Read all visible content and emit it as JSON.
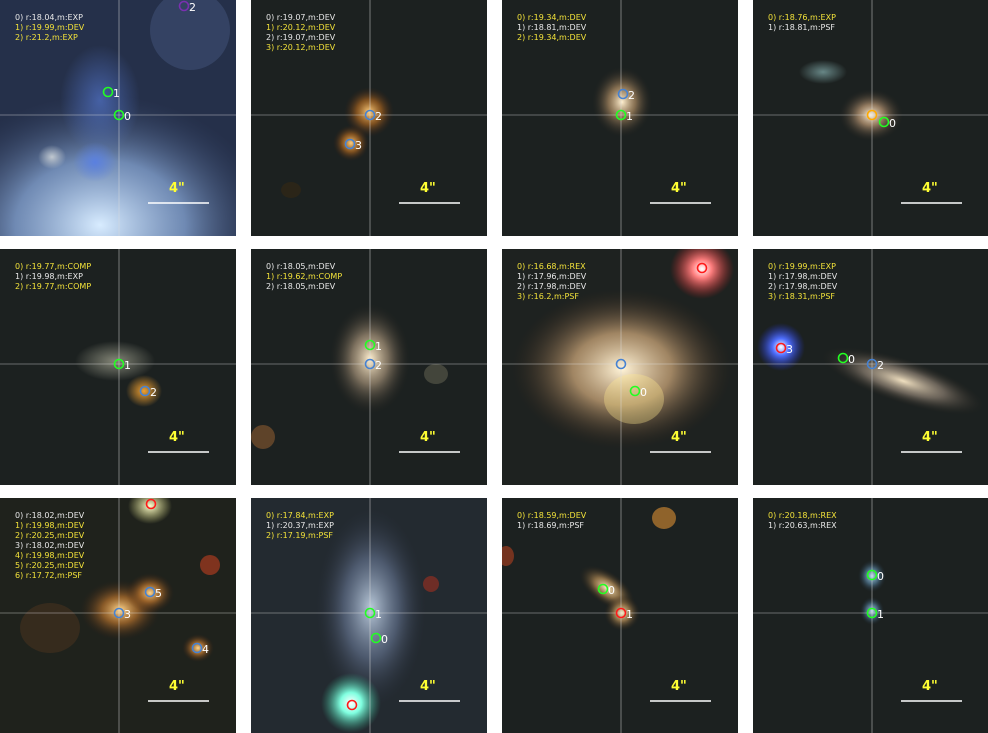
{
  "colors": {
    "green": "#22ff22",
    "blue": "#4682d2",
    "red": "#ff1a1a",
    "orange": "#ffaa00",
    "purple": "#7a30b0",
    "legend_white": "#e8e8e8",
    "legend_yellow": "#f2e23a",
    "scale_yellow": "#ffff33"
  },
  "scale_text": "4\"",
  "panels": [
    {
      "legend": [
        {
          "text": "0) r:18.04,m:EXP",
          "color": "legend_white"
        },
        {
          "text": "1) r:19.99,m:DEV",
          "color": "legend_yellow"
        },
        {
          "text": "2) r:21.2,m:EXP",
          "color": "legend_yellow"
        }
      ],
      "markers": [
        {
          "label": "0",
          "color": "green"
        },
        {
          "label": "1",
          "color": "green"
        },
        {
          "label": "2",
          "color": "purple"
        }
      ]
    },
    {
      "legend": [
        {
          "text": "0) r:19.07,m:DEV",
          "color": "legend_white"
        },
        {
          "text": "1) r:20.12,m:DEV",
          "color": "legend_yellow"
        },
        {
          "text": "2) r:19.07,m:DEV",
          "color": "legend_white"
        },
        {
          "text": "3) r:20.12,m:DEV",
          "color": "legend_yellow"
        }
      ],
      "markers": [
        {
          "label": "2",
          "color": "blue"
        },
        {
          "label": "3",
          "color": "blue"
        }
      ]
    },
    {
      "legend": [
        {
          "text": "0) r:19.34,m:DEV",
          "color": "legend_yellow"
        },
        {
          "text": "1) r:18.81,m:DEV",
          "color": "legend_white"
        },
        {
          "text": "2) r:19.34,m:DEV",
          "color": "legend_yellow"
        }
      ],
      "markers": [
        {
          "label": "2",
          "color": "blue"
        },
        {
          "label": "1",
          "color": "green"
        }
      ]
    },
    {
      "legend": [
        {
          "text": "0) r:18.76,m:EXP",
          "color": "legend_yellow"
        },
        {
          "text": "1) r:18.81,m:PSF",
          "color": "legend_white"
        }
      ],
      "markers": [
        {
          "label": "",
          "color": "orange"
        },
        {
          "label": "0",
          "color": "green"
        }
      ]
    },
    {
      "legend": [
        {
          "text": "0) r:19.77,m:COMP",
          "color": "legend_yellow"
        },
        {
          "text": "1) r:19.98,m:EXP",
          "color": "legend_white"
        },
        {
          "text": "2) r:19.77,m:COMP",
          "color": "legend_yellow"
        }
      ],
      "markers": [
        {
          "label": "1",
          "color": "green"
        },
        {
          "label": "2",
          "color": "blue"
        }
      ]
    },
    {
      "legend": [
        {
          "text": "0) r:18.05,m:DEV",
          "color": "legend_white"
        },
        {
          "text": "1) r:19.62,m:COMP",
          "color": "legend_yellow"
        },
        {
          "text": "2) r:18.05,m:DEV",
          "color": "legend_white"
        }
      ],
      "markers": [
        {
          "label": "1",
          "color": "green"
        },
        {
          "label": "2",
          "color": "blue"
        }
      ]
    },
    {
      "legend": [
        {
          "text": "0) r:16.68,m:REX",
          "color": "legend_yellow"
        },
        {
          "text": "1) r:17.96,m:DEV",
          "color": "legend_white"
        },
        {
          "text": "2) r:17.98,m:DEV",
          "color": "legend_white"
        },
        {
          "text": "3) r:16.2,m:PSF",
          "color": "legend_yellow"
        }
      ],
      "markers": [
        {
          "label": "",
          "color": "red"
        },
        {
          "label": "",
          "color": "blue"
        },
        {
          "label": "0",
          "color": "green"
        }
      ]
    },
    {
      "legend": [
        {
          "text": "0) r:19.99,m:EXP",
          "color": "legend_yellow"
        },
        {
          "text": "1) r:17.98,m:DEV",
          "color": "legend_white"
        },
        {
          "text": "2) r:17.98,m:DEV",
          "color": "legend_white"
        },
        {
          "text": "3) r:18.31,m:PSF",
          "color": "legend_yellow"
        }
      ],
      "markers": [
        {
          "label": "3",
          "color": "red"
        },
        {
          "label": "0",
          "color": "green"
        },
        {
          "label": "2",
          "color": "blue"
        }
      ]
    },
    {
      "legend": [
        {
          "text": "0) r:18.02,m:DEV",
          "color": "legend_white"
        },
        {
          "text": "1) r:19.98,m:DEV",
          "color": "legend_yellow"
        },
        {
          "text": "2) r:20.25,m:DEV",
          "color": "legend_yellow"
        },
        {
          "text": "3) r:18.02,m:DEV",
          "color": "legend_white"
        },
        {
          "text": "4) r:19.98,m:DEV",
          "color": "legend_yellow"
        },
        {
          "text": "5) r:20.25,m:DEV",
          "color": "legend_yellow"
        },
        {
          "text": "6) r:17.72,m:PSF",
          "color": "legend_yellow"
        }
      ],
      "markers": [
        {
          "label": "",
          "color": "red"
        },
        {
          "label": "5",
          "color": "blue"
        },
        {
          "label": "3",
          "color": "blue"
        },
        {
          "label": "4",
          "color": "blue"
        }
      ]
    },
    {
      "legend": [
        {
          "text": "0) r:17.84,m:EXP",
          "color": "legend_yellow"
        },
        {
          "text": "1) r:20.37,m:EXP",
          "color": "legend_white"
        },
        {
          "text": "2) r:17.19,m:PSF",
          "color": "legend_yellow"
        }
      ],
      "markers": [
        {
          "label": "1",
          "color": "green"
        },
        {
          "label": "0",
          "color": "green"
        },
        {
          "label": "",
          "color": "red"
        }
      ]
    },
    {
      "legend": [
        {
          "text": "0) r:18.59,m:DEV",
          "color": "legend_yellow"
        },
        {
          "text": "1) r:18.69,m:PSF",
          "color": "legend_white"
        }
      ],
      "markers": [
        {
          "label": "0",
          "color": "green"
        },
        {
          "label": "1",
          "color": "red"
        }
      ]
    },
    {
      "legend": [
        {
          "text": "0) r:20.18,m:REX",
          "color": "legend_yellow"
        },
        {
          "text": "1) r:20.63,m:REX",
          "color": "legend_white"
        }
      ],
      "markers": [
        {
          "label": "0",
          "color": "green"
        },
        {
          "label": "1",
          "color": "green"
        }
      ]
    }
  ]
}
